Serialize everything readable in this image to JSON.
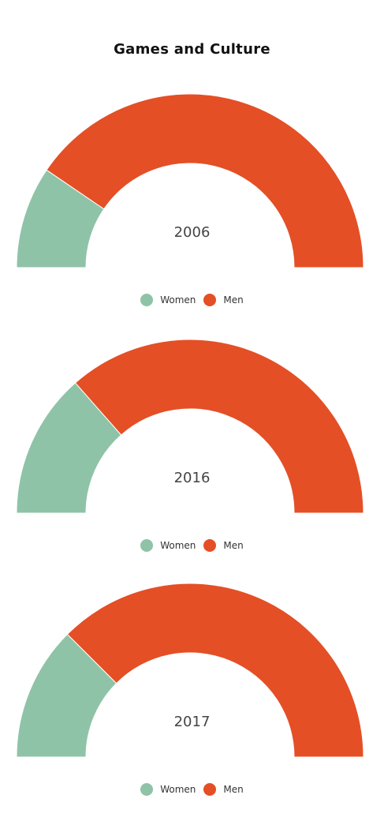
{
  "title": "Games and Culture",
  "colors": {
    "women": "#8fc3a7",
    "men": "#e44f26"
  },
  "chart_data": {
    "type": "pie",
    "title": "Games and Culture",
    "charts": [
      {
        "label": "2006",
        "series": [
          {
            "name": "Women",
            "value": 19
          },
          {
            "name": "Men",
            "value": 81
          }
        ]
      },
      {
        "label": "2016",
        "series": [
          {
            "name": "Women",
            "value": 27
          },
          {
            "name": "Men",
            "value": 73
          }
        ]
      },
      {
        "label": "2017",
        "series": [
          {
            "name": "Women",
            "value": 25
          },
          {
            "name": "Men",
            "value": 75
          }
        ]
      }
    ]
  }
}
